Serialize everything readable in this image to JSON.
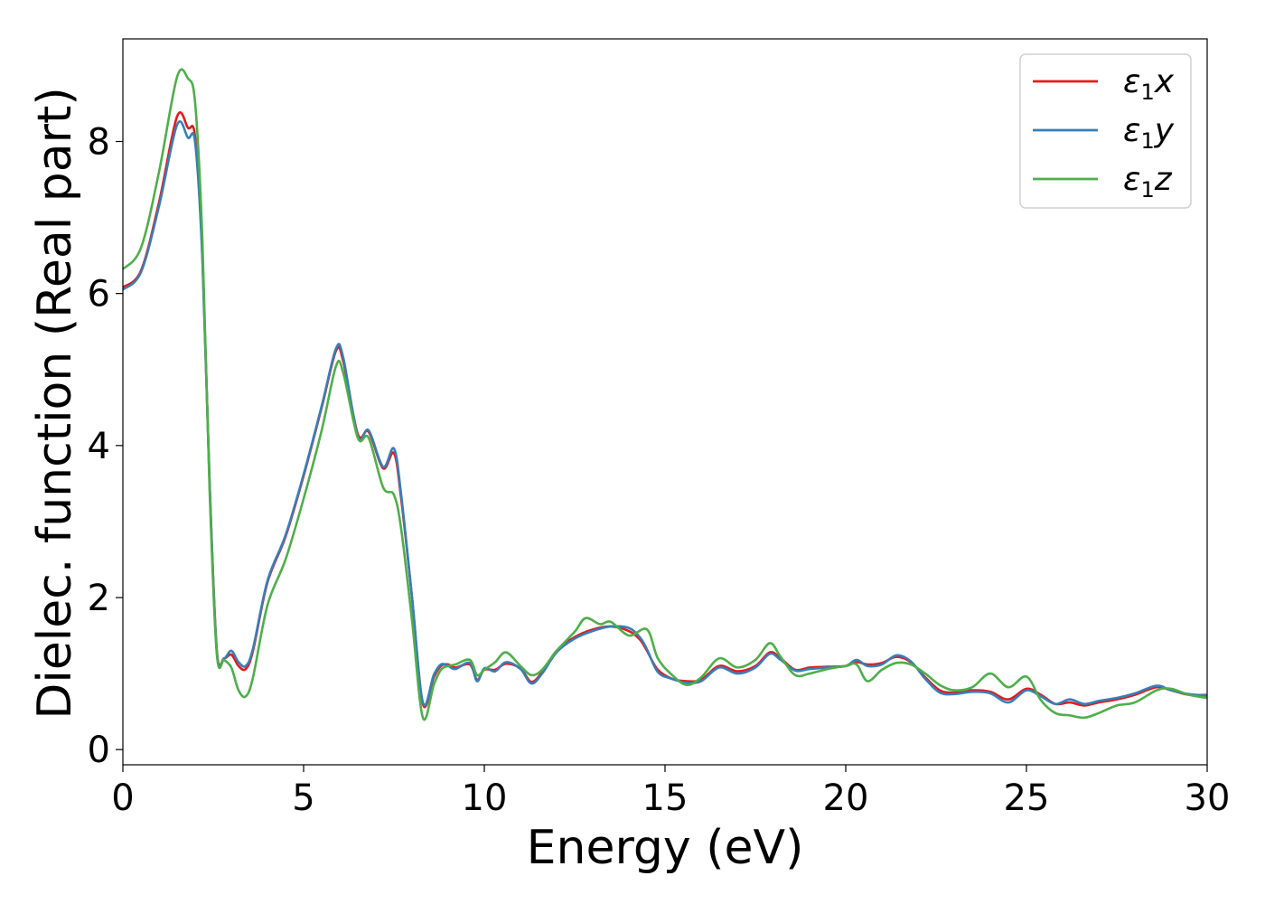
{
  "chart_data": {
    "type": "line",
    "xlabel": "Energy (eV)",
    "ylabel": "Dielec. function (Real part)",
    "xlim": [
      0,
      30
    ],
    "ylim": [
      -0.2,
      9.35
    ],
    "xticks": [
      0,
      5,
      10,
      15,
      20,
      25,
      30
    ],
    "yticks": [
      0,
      2,
      4,
      6,
      8
    ],
    "grid": false,
    "legend_position": "top-right",
    "series": [
      {
        "name": "ε1x",
        "symbol": "ε",
        "sub": "1",
        "axis": "x",
        "color": "#e41a1c",
        "points": [
          [
            0,
            6.08
          ],
          [
            0.5,
            6.3
          ],
          [
            1.0,
            7.2
          ],
          [
            1.5,
            8.33
          ],
          [
            1.8,
            8.18
          ],
          [
            2.0,
            8.05
          ],
          [
            2.2,
            6.5
          ],
          [
            2.4,
            3.5
          ],
          [
            2.6,
            1.3
          ],
          [
            2.8,
            1.2
          ],
          [
            3.0,
            1.25
          ],
          [
            3.2,
            1.1
          ],
          [
            3.4,
            1.06
          ],
          [
            3.6,
            1.3
          ],
          [
            4.0,
            2.2
          ],
          [
            4.5,
            2.8
          ],
          [
            5.0,
            3.6
          ],
          [
            5.5,
            4.5
          ],
          [
            5.9,
            5.25
          ],
          [
            6.1,
            5.1
          ],
          [
            6.5,
            4.15
          ],
          [
            6.8,
            4.18
          ],
          [
            7.2,
            3.7
          ],
          [
            7.5,
            3.9
          ],
          [
            7.7,
            3.3
          ],
          [
            8.0,
            2.0
          ],
          [
            8.3,
            0.6
          ],
          [
            8.6,
            0.95
          ],
          [
            8.8,
            1.1
          ],
          [
            9.0,
            1.12
          ],
          [
            9.2,
            1.08
          ],
          [
            9.6,
            1.12
          ],
          [
            9.8,
            0.92
          ],
          [
            10.0,
            1.05
          ],
          [
            10.3,
            1.05
          ],
          [
            10.6,
            1.13
          ],
          [
            11.0,
            1.07
          ],
          [
            11.3,
            0.89
          ],
          [
            11.6,
            1.02
          ],
          [
            12.0,
            1.3
          ],
          [
            12.5,
            1.48
          ],
          [
            13.0,
            1.58
          ],
          [
            13.5,
            1.62
          ],
          [
            14.0,
            1.56
          ],
          [
            14.3,
            1.45
          ],
          [
            14.5,
            1.3
          ],
          [
            14.8,
            1.05
          ],
          [
            15.2,
            0.93
          ],
          [
            15.6,
            0.9
          ],
          [
            16.0,
            0.92
          ],
          [
            16.5,
            1.1
          ],
          [
            17.0,
            1.03
          ],
          [
            17.5,
            1.1
          ],
          [
            17.9,
            1.28
          ],
          [
            18.2,
            1.2
          ],
          [
            18.6,
            1.05
          ],
          [
            19.0,
            1.08
          ],
          [
            19.5,
            1.09
          ],
          [
            20.0,
            1.1
          ],
          [
            20.3,
            1.15
          ],
          [
            20.6,
            1.12
          ],
          [
            21.0,
            1.14
          ],
          [
            21.4,
            1.22
          ],
          [
            21.8,
            1.15
          ],
          [
            22.2,
            0.95
          ],
          [
            22.6,
            0.78
          ],
          [
            23.0,
            0.75
          ],
          [
            23.5,
            0.78
          ],
          [
            24.0,
            0.76
          ],
          [
            24.5,
            0.66
          ],
          [
            25.0,
            0.8
          ],
          [
            25.4,
            0.72
          ],
          [
            25.8,
            0.6
          ],
          [
            26.2,
            0.62
          ],
          [
            26.6,
            0.58
          ],
          [
            27.0,
            0.62
          ],
          [
            27.5,
            0.66
          ],
          [
            28.0,
            0.72
          ],
          [
            28.6,
            0.82
          ],
          [
            29.0,
            0.78
          ],
          [
            29.5,
            0.72
          ],
          [
            30,
            0.72
          ]
        ]
      },
      {
        "name": "ε1y",
        "symbol": "ε",
        "sub": "1",
        "axis": "y",
        "color": "#377eb8",
        "points": [
          [
            0,
            6.05
          ],
          [
            0.5,
            6.28
          ],
          [
            1.0,
            7.15
          ],
          [
            1.5,
            8.22
          ],
          [
            1.8,
            8.05
          ],
          [
            2.0,
            7.98
          ],
          [
            2.2,
            6.45
          ],
          [
            2.4,
            3.5
          ],
          [
            2.6,
            1.28
          ],
          [
            2.8,
            1.2
          ],
          [
            3.0,
            1.3
          ],
          [
            3.2,
            1.15
          ],
          [
            3.4,
            1.1
          ],
          [
            3.6,
            1.33
          ],
          [
            4.0,
            2.22
          ],
          [
            4.5,
            2.82
          ],
          [
            5.0,
            3.62
          ],
          [
            5.5,
            4.52
          ],
          [
            5.9,
            5.28
          ],
          [
            6.1,
            5.15
          ],
          [
            6.5,
            4.12
          ],
          [
            6.8,
            4.2
          ],
          [
            7.2,
            3.72
          ],
          [
            7.5,
            3.96
          ],
          [
            7.7,
            3.35
          ],
          [
            8.0,
            2.0
          ],
          [
            8.3,
            0.62
          ],
          [
            8.6,
            0.98
          ],
          [
            8.8,
            1.12
          ],
          [
            9.0,
            1.1
          ],
          [
            9.2,
            1.06
          ],
          [
            9.6,
            1.14
          ],
          [
            9.8,
            0.9
          ],
          [
            10.0,
            1.07
          ],
          [
            10.3,
            1.03
          ],
          [
            10.6,
            1.15
          ],
          [
            11.0,
            1.06
          ],
          [
            11.3,
            0.87
          ],
          [
            11.6,
            1.0
          ],
          [
            12.0,
            1.28
          ],
          [
            12.5,
            1.46
          ],
          [
            13.0,
            1.56
          ],
          [
            13.5,
            1.62
          ],
          [
            14.0,
            1.6
          ],
          [
            14.3,
            1.48
          ],
          [
            14.5,
            1.32
          ],
          [
            14.8,
            1.02
          ],
          [
            15.2,
            0.93
          ],
          [
            15.6,
            0.88
          ],
          [
            16.0,
            0.9
          ],
          [
            16.5,
            1.08
          ],
          [
            17.0,
            1.0
          ],
          [
            17.5,
            1.08
          ],
          [
            17.9,
            1.26
          ],
          [
            18.2,
            1.18
          ],
          [
            18.6,
            1.04
          ],
          [
            19.0,
            1.06
          ],
          [
            19.5,
            1.08
          ],
          [
            20.0,
            1.1
          ],
          [
            20.3,
            1.18
          ],
          [
            20.6,
            1.1
          ],
          [
            21.0,
            1.12
          ],
          [
            21.4,
            1.24
          ],
          [
            21.8,
            1.16
          ],
          [
            22.2,
            0.93
          ],
          [
            22.6,
            0.75
          ],
          [
            23.0,
            0.73
          ],
          [
            23.5,
            0.76
          ],
          [
            24.0,
            0.74
          ],
          [
            24.5,
            0.62
          ],
          [
            25.0,
            0.78
          ],
          [
            25.4,
            0.7
          ],
          [
            25.8,
            0.6
          ],
          [
            26.2,
            0.66
          ],
          [
            26.6,
            0.6
          ],
          [
            27.0,
            0.64
          ],
          [
            27.5,
            0.68
          ],
          [
            28.0,
            0.74
          ],
          [
            28.6,
            0.84
          ],
          [
            29.0,
            0.78
          ],
          [
            29.5,
            0.73
          ],
          [
            30,
            0.71
          ]
        ]
      },
      {
        "name": "ε1z",
        "symbol": "ε",
        "sub": "1",
        "axis": "z",
        "color": "#4daf4a",
        "points": [
          [
            0,
            6.32
          ],
          [
            0.5,
            6.6
          ],
          [
            1.0,
            7.6
          ],
          [
            1.5,
            8.85
          ],
          [
            1.8,
            8.83
          ],
          [
            2.0,
            8.5
          ],
          [
            2.2,
            6.7
          ],
          [
            2.4,
            3.4
          ],
          [
            2.6,
            1.25
          ],
          [
            2.8,
            1.18
          ],
          [
            3.0,
            1.08
          ],
          [
            3.2,
            0.78
          ],
          [
            3.4,
            0.7
          ],
          [
            3.6,
            0.95
          ],
          [
            4.0,
            1.9
          ],
          [
            4.5,
            2.5
          ],
          [
            5.0,
            3.3
          ],
          [
            5.5,
            4.2
          ],
          [
            5.9,
            5.05
          ],
          [
            6.1,
            4.95
          ],
          [
            6.5,
            4.1
          ],
          [
            6.8,
            4.1
          ],
          [
            7.2,
            3.45
          ],
          [
            7.5,
            3.35
          ],
          [
            7.7,
            2.9
          ],
          [
            8.0,
            1.7
          ],
          [
            8.3,
            0.42
          ],
          [
            8.6,
            0.85
          ],
          [
            8.8,
            1.05
          ],
          [
            9.0,
            1.1
          ],
          [
            9.2,
            1.12
          ],
          [
            9.6,
            1.18
          ],
          [
            9.8,
            0.98
          ],
          [
            10.0,
            1.05
          ],
          [
            10.3,
            1.15
          ],
          [
            10.6,
            1.28
          ],
          [
            11.0,
            1.1
          ],
          [
            11.3,
            0.98
          ],
          [
            11.6,
            1.05
          ],
          [
            12.0,
            1.3
          ],
          [
            12.5,
            1.55
          ],
          [
            12.8,
            1.73
          ],
          [
            13.2,
            1.65
          ],
          [
            13.5,
            1.68
          ],
          [
            14.0,
            1.5
          ],
          [
            14.5,
            1.58
          ],
          [
            14.8,
            1.2
          ],
          [
            15.2,
            0.98
          ],
          [
            15.6,
            0.85
          ],
          [
            16.0,
            0.95
          ],
          [
            16.5,
            1.2
          ],
          [
            17.0,
            1.08
          ],
          [
            17.5,
            1.18
          ],
          [
            17.9,
            1.4
          ],
          [
            18.2,
            1.22
          ],
          [
            18.6,
            0.98
          ],
          [
            19.0,
            1.0
          ],
          [
            19.5,
            1.06
          ],
          [
            20.0,
            1.1
          ],
          [
            20.3,
            1.12
          ],
          [
            20.6,
            0.9
          ],
          [
            21.0,
            1.05
          ],
          [
            21.4,
            1.14
          ],
          [
            21.8,
            1.12
          ],
          [
            22.2,
            1.0
          ],
          [
            22.6,
            0.85
          ],
          [
            23.0,
            0.78
          ],
          [
            23.5,
            0.82
          ],
          [
            24.0,
            1.0
          ],
          [
            24.5,
            0.82
          ],
          [
            25.0,
            0.96
          ],
          [
            25.4,
            0.65
          ],
          [
            25.8,
            0.48
          ],
          [
            26.2,
            0.45
          ],
          [
            26.6,
            0.42
          ],
          [
            27.0,
            0.48
          ],
          [
            27.5,
            0.58
          ],
          [
            28.0,
            0.62
          ],
          [
            28.6,
            0.78
          ],
          [
            29.0,
            0.8
          ],
          [
            29.5,
            0.72
          ],
          [
            30,
            0.68
          ]
        ]
      }
    ]
  }
}
